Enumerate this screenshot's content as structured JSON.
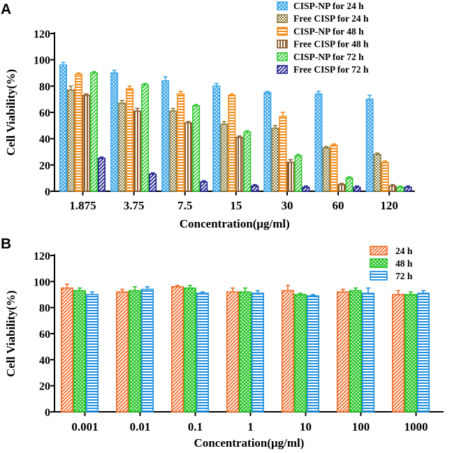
{
  "chart_data": [
    {
      "panel": "A",
      "type": "bar",
      "xlabel": "Concentration(μg/ml)",
      "ylabel": "Cell Viability(%)",
      "ylim": [
        0,
        120
      ],
      "yticks": [
        "0",
        "20",
        "40",
        "60",
        "80",
        "100",
        "120"
      ],
      "categories": [
        "1.875",
        "3.75",
        "7.5",
        "15",
        "30",
        "60",
        "120"
      ],
      "legend_position": "top-right",
      "series": [
        {
          "name": "CISP-NP for 24 h",
          "color": "#3fa7e8",
          "pattern": "crosshatch",
          "values": [
            96,
            90,
            84,
            80,
            75,
            74,
            70
          ],
          "errors": [
            2,
            2,
            3,
            2,
            1,
            2,
            3
          ]
        },
        {
          "name": "Free CISP for 24 h",
          "color": "#8b7a3a",
          "pattern": "checker",
          "values": [
            77,
            67,
            61,
            51,
            48,
            33,
            28
          ],
          "errors": [
            3,
            2,
            2,
            2,
            2,
            1,
            1
          ]
        },
        {
          "name": "CISP-NP for 48 h",
          "color": "#f28c1c",
          "pattern": "hlines",
          "values": [
            89,
            78,
            74,
            73,
            57,
            35,
            22
          ],
          "errors": [
            1,
            2,
            2,
            1,
            3,
            1,
            1
          ]
        },
        {
          "name": "Free CISP for 48 h",
          "color": "#8b5a2b",
          "pattern": "vlines",
          "values": [
            73,
            61,
            52,
            41,
            22,
            5,
            4
          ],
          "errors": [
            1,
            2,
            1,
            1,
            2,
            1,
            1
          ]
        },
        {
          "name": "CISP-NP for 72 h",
          "color": "#2ec72e",
          "pattern": "diag",
          "values": [
            90,
            81,
            65,
            45,
            27,
            10,
            3
          ],
          "errors": [
            1,
            1,
            1,
            1,
            1,
            1,
            1
          ]
        },
        {
          "name": "Free CISP for 72 h",
          "color": "#1f1f8a",
          "pattern": "diag",
          "values": [
            25,
            13,
            7,
            4,
            3,
            3,
            3
          ],
          "errors": [
            1,
            1,
            1,
            1,
            1,
            1,
            1
          ]
        }
      ]
    },
    {
      "panel": "B",
      "type": "bar",
      "xlabel": "Concentration(μg/ml)",
      "ylabel": "Cell Viability(%)",
      "ylim": [
        0,
        120
      ],
      "yticks": [
        "0",
        "20",
        "40",
        "60",
        "80",
        "100",
        "120"
      ],
      "categories": [
        "0.001",
        "0.01",
        "0.1",
        "1",
        "10",
        "100",
        "1000"
      ],
      "legend_position": "top-right",
      "series": [
        {
          "name": "24 h",
          "color": "#f26a28",
          "pattern": "diag",
          "values": [
            95,
            92,
            96,
            92,
            93,
            92,
            90
          ],
          "errors": [
            3,
            2,
            1,
            3,
            4,
            2,
            3
          ]
        },
        {
          "name": "48 h",
          "color": "#22c322",
          "pattern": "crosshatch",
          "values": [
            93,
            93,
            95,
            92,
            90,
            93,
            90
          ],
          "errors": [
            2,
            3,
            2,
            3,
            1,
            2,
            2
          ]
        },
        {
          "name": "72 h",
          "color": "#1f8fe0",
          "pattern": "hlines",
          "values": [
            90,
            94,
            91,
            91,
            89,
            91,
            91
          ],
          "errors": [
            2,
            2,
            1,
            2,
            1,
            4,
            2
          ]
        }
      ]
    }
  ]
}
